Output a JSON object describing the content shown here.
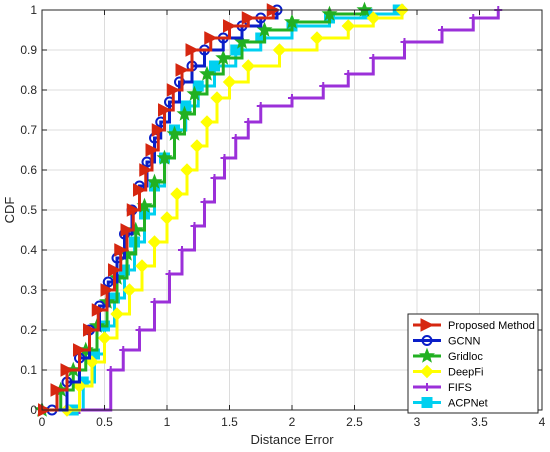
{
  "chart_data": {
    "type": "line",
    "title": "",
    "xlabel": "Distance Error",
    "ylabel": "CDF",
    "xlim": [
      0,
      4
    ],
    "ylim": [
      0,
      1
    ],
    "xticks": [
      "0",
      "0.5",
      "1",
      "1.5",
      "2",
      "2.5",
      "3",
      "3.5",
      "4"
    ],
    "yticks": [
      "0",
      "0.1",
      "0.2",
      "0.3",
      "0.4",
      "0.5",
      "0.6",
      "0.7",
      "0.8",
      "0.9",
      "1"
    ],
    "grid": true,
    "legend_position": "bottom-right",
    "series": [
      {
        "name": "Proposed Method",
        "color": "#d62710",
        "marker": "triangle-right",
        "x": [
          0.02,
          0.12,
          0.2,
          0.3,
          0.38,
          0.45,
          0.52,
          0.58,
          0.63,
          0.68,
          0.73,
          0.78,
          0.83,
          0.88,
          0.93,
          0.98,
          1.05,
          1.12,
          1.2,
          1.35,
          1.5,
          1.65,
          1.85
        ],
        "y": [
          0.0,
          0.05,
          0.1,
          0.15,
          0.2,
          0.25,
          0.3,
          0.35,
          0.4,
          0.45,
          0.5,
          0.55,
          0.6,
          0.65,
          0.7,
          0.75,
          0.8,
          0.85,
          0.9,
          0.93,
          0.96,
          0.98,
          1.0
        ]
      },
      {
        "name": "GCNN",
        "color": "#0a1ec8",
        "marker": "circle",
        "x": [
          0.08,
          0.2,
          0.3,
          0.38,
          0.46,
          0.53,
          0.6,
          0.66,
          0.72,
          0.78,
          0.84,
          0.9,
          0.95,
          1.02,
          1.1,
          1.2,
          1.3,
          1.45,
          1.6,
          1.75,
          1.88
        ],
        "y": [
          0.0,
          0.07,
          0.13,
          0.2,
          0.26,
          0.32,
          0.38,
          0.44,
          0.5,
          0.56,
          0.62,
          0.68,
          0.72,
          0.77,
          0.82,
          0.86,
          0.9,
          0.93,
          0.96,
          0.98,
          1.0
        ]
      },
      {
        "name": "Gridloc",
        "color": "#22b022",
        "marker": "star",
        "x": [
          0.0,
          0.15,
          0.25,
          0.35,
          0.44,
          0.52,
          0.6,
          0.68,
          0.75,
          0.82,
          0.9,
          0.98,
          1.06,
          1.14,
          1.22,
          1.32,
          1.45,
          1.6,
          1.78,
          2.0,
          2.3,
          2.58
        ],
        "y": [
          0.0,
          0.05,
          0.1,
          0.15,
          0.21,
          0.27,
          0.33,
          0.39,
          0.45,
          0.51,
          0.57,
          0.63,
          0.69,
          0.74,
          0.79,
          0.84,
          0.88,
          0.92,
          0.95,
          0.97,
          0.99,
          1.0
        ]
      },
      {
        "name": "DeepFi",
        "color": "#ffff00",
        "marker": "diamond",
        "x": [
          0.2,
          0.3,
          0.4,
          0.5,
          0.6,
          0.7,
          0.8,
          0.9,
          1.0,
          1.08,
          1.16,
          1.24,
          1.32,
          1.4,
          1.5,
          1.65,
          1.9,
          2.2,
          2.45,
          2.65,
          2.88
        ],
        "y": [
          0.0,
          0.06,
          0.12,
          0.18,
          0.24,
          0.3,
          0.36,
          0.42,
          0.48,
          0.54,
          0.6,
          0.66,
          0.72,
          0.78,
          0.82,
          0.86,
          0.9,
          0.93,
          0.96,
          0.98,
          1.0
        ]
      },
      {
        "name": "FIFS",
        "color": "#9b30d9",
        "marker": "plus",
        "x": [
          0.3,
          0.55,
          0.65,
          0.78,
          0.9,
          1.02,
          1.12,
          1.22,
          1.3,
          1.38,
          1.46,
          1.55,
          1.65,
          1.75,
          2.0,
          2.25,
          2.45,
          2.65,
          2.9,
          3.2,
          3.45,
          3.65
        ],
        "y": [
          0.0,
          0.1,
          0.15,
          0.2,
          0.27,
          0.34,
          0.4,
          0.46,
          0.52,
          0.58,
          0.63,
          0.68,
          0.72,
          0.76,
          0.78,
          0.81,
          0.84,
          0.88,
          0.92,
          0.95,
          0.98,
          1.0
        ]
      },
      {
        "name": "ACPNet",
        "color": "#00d0f0",
        "marker": "square",
        "x": [
          0.25,
          0.33,
          0.42,
          0.5,
          0.58,
          0.66,
          0.74,
          0.82,
          0.9,
          0.98,
          1.06,
          1.15,
          1.25,
          1.38,
          1.55,
          1.75,
          2.0,
          2.3,
          2.6,
          2.85
        ],
        "y": [
          0.0,
          0.07,
          0.14,
          0.21,
          0.28,
          0.35,
          0.42,
          0.49,
          0.56,
          0.63,
          0.7,
          0.76,
          0.81,
          0.86,
          0.9,
          0.93,
          0.96,
          0.98,
          0.99,
          1.0
        ]
      }
    ]
  }
}
